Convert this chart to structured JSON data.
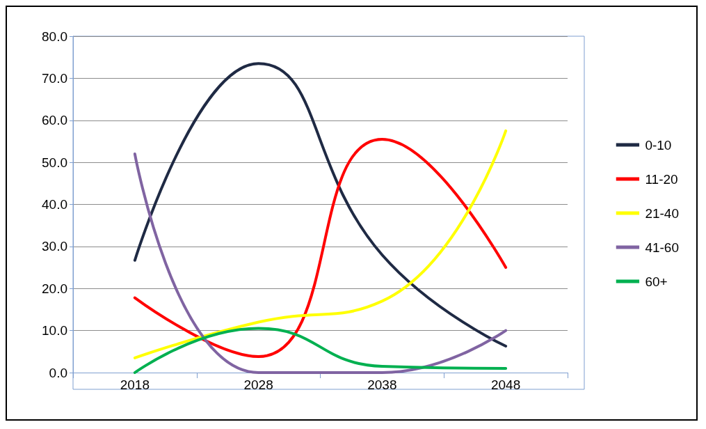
{
  "chart_data": {
    "type": "line",
    "categories": [
      "2018",
      "2028",
      "2038",
      "2048"
    ],
    "series": [
      {
        "name": "0-10",
        "color": "#1f2a44",
        "values": [
          26.7,
          73.5,
          28.0,
          6.3
        ]
      },
      {
        "name": "11-20",
        "color": "#ff0000",
        "values": [
          17.8,
          3.8,
          55.5,
          25.0
        ]
      },
      {
        "name": "21-40",
        "color": "#ffff00",
        "values": [
          3.5,
          12.0,
          17.0,
          57.5
        ]
      },
      {
        "name": "41-60",
        "color": "#8064a2",
        "values": [
          52.0,
          0.0,
          0.0,
          10.0
        ]
      },
      {
        "name": "60+",
        "color": "#00b050",
        "values": [
          0.0,
          10.5,
          1.5,
          1.0
        ]
      }
    ],
    "ylim": [
      0,
      80
    ],
    "yticks": [
      {
        "value": 0,
        "label": "0.0"
      },
      {
        "value": 10,
        "label": "10.0"
      },
      {
        "value": 20,
        "label": "20.0"
      },
      {
        "value": 30,
        "label": "30.0"
      },
      {
        "value": 40,
        "label": "40.0"
      },
      {
        "value": 50,
        "label": "50.0"
      },
      {
        "value": 60,
        "label": "60.0"
      },
      {
        "value": 70,
        "label": "70.0"
      },
      {
        "value": 80,
        "label": "80.0"
      }
    ],
    "grid": "y",
    "legend": "right",
    "marker": "none",
    "line_style": "solid"
  }
}
